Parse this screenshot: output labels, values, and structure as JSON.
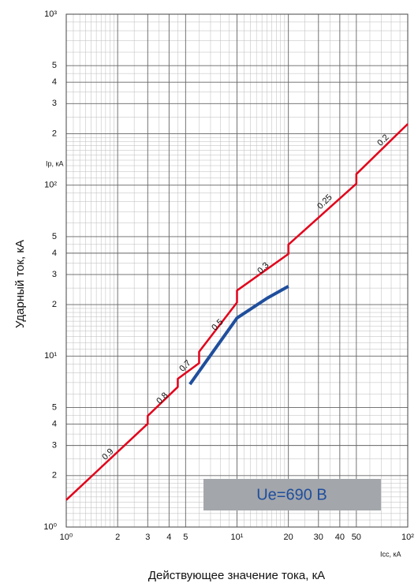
{
  "chart_data": {
    "type": "line",
    "log_x": true,
    "log_y": true,
    "grid": true,
    "x_label": "Действующее значение тока, кА",
    "y_label": "Ударный ток, кА",
    "x_unit": "Icc, кА",
    "y_unit": "Ip, кА",
    "annotation": "Ue=690 B",
    "line_labels": [
      "0.9",
      "0.8",
      "0.7",
      "0.5",
      "0.3",
      "0.25",
      "0.2"
    ],
    "xlim": [
      1,
      100
    ],
    "ylim": [
      1,
      1000
    ],
    "xticks": [
      {
        "value": 1,
        "label": "10⁰"
      },
      2,
      3,
      4,
      5,
      {
        "value": 10,
        "label": "10¹"
      },
      20,
      30,
      40,
      50,
      {
        "value": 100,
        "label": "10²"
      }
    ],
    "yticks": [
      {
        "value": 1,
        "label": "10⁰"
      },
      2,
      3,
      4,
      5,
      {
        "value": 10,
        "label": "10¹"
      },
      {
        "value": 20,
        "label": "2"
      },
      {
        "value": 30,
        "label": "3"
      },
      {
        "value": 40,
        "label": "4"
      },
      {
        "value": 50,
        "label": "5"
      },
      {
        "value": 100,
        "label": "10²"
      },
      {
        "value": 200,
        "label": "2"
      },
      {
        "value": 300,
        "label": "3"
      },
      {
        "value": 400,
        "label": "4"
      },
      {
        "value": 500,
        "label": "5"
      },
      {
        "value": 1000,
        "label": "10³"
      }
    ],
    "series": [
      {
        "color": "#e2001a",
        "x": [
          1,
          3,
          3,
          4.5,
          4.5,
          6,
          6,
          10,
          10,
          20,
          20,
          50,
          50,
          100
        ],
        "values": [
          1.44,
          4.02,
          4.47,
          6.6,
          7.36,
          9.1,
          10.6,
          20.6,
          24.2,
          39.6,
          44.9,
          102,
          116,
          228
        ]
      },
      {
        "color": "#1f4e9c",
        "x": [
          5.3,
          10,
          15,
          20
        ],
        "values": [
          6.84,
          16.7,
          21.8,
          25.6
        ]
      }
    ]
  }
}
